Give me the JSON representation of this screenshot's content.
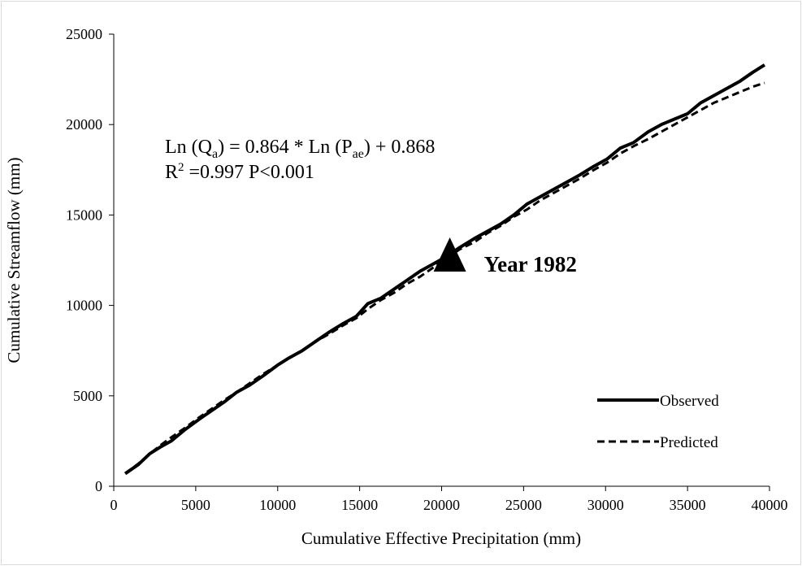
{
  "chart_data": {
    "type": "line",
    "x_label": "Cumulative Effective Precipitation (mm)",
    "y_label": "Cumulative Streamflow (mm)",
    "equation": [
      "Ln (Q",
      "a",
      ") = 0.864 * Ln (P",
      "ae",
      ") + 0.868"
    ],
    "r_squared": [
      "R",
      "2",
      " =0.997  P<0.001"
    ],
    "marker": {
      "x": 20500,
      "y": 12500,
      "label": "Year 1982",
      "color": "#000000"
    },
    "x": [
      700,
      1500,
      2200,
      2900,
      3500,
      4300,
      5200,
      6000,
      6800,
      7500,
      8300,
      9100,
      10000,
      10700,
      11500,
      12300,
      13100,
      14000,
      14800,
      15500,
      16300,
      17100,
      17900,
      18700,
      19500,
      20300,
      21100,
      22000,
      22800,
      23600,
      24400,
      25200,
      26000,
      26800,
      27600,
      28400,
      29300,
      30100,
      30900,
      31700,
      32600,
      33400,
      34200,
      35000,
      35800,
      36600,
      37400,
      38200,
      39000,
      39700
    ],
    "series": [
      {
        "name": "Observed",
        "color": "#000000",
        "dash": "solid",
        "values": [
          700,
          1200,
          1800,
          2200,
          2500,
          3100,
          3700,
          4200,
          4700,
          5200,
          5600,
          6100,
          6700,
          7100,
          7500,
          8000,
          8500,
          9000,
          9400,
          10100,
          10400,
          10900,
          11400,
          11900,
          12300,
          12700,
          13200,
          13700,
          14100,
          14500,
          15000,
          15600,
          16000,
          16400,
          16800,
          17200,
          17700,
          18100,
          18700,
          19000,
          19600,
          20000,
          20300,
          20600,
          21200,
          21600,
          22000,
          22400,
          22900,
          23300
        ]
      },
      {
        "name": "Predicted",
        "color": "#000000",
        "dash": "dashed",
        "values": [
          700,
          1250,
          1800,
          2300,
          2700,
          3200,
          3800,
          4300,
          4800,
          5200,
          5700,
          6200,
          6700,
          7100,
          7500,
          8000,
          8400,
          8900,
          9300,
          9800,
          10300,
          10700,
          11200,
          11600,
          12100,
          12600,
          13100,
          13500,
          14000,
          14400,
          14900,
          15300,
          15800,
          16200,
          16600,
          17000,
          17500,
          17900,
          18400,
          18800,
          19200,
          19600,
          20000,
          20400,
          20800,
          21200,
          21500,
          21800,
          22100,
          22300
        ]
      }
    ],
    "xlim": [
      0,
      40000
    ],
    "ylim": [
      0,
      25000
    ],
    "xticks": [
      0,
      5000,
      10000,
      15000,
      20000,
      25000,
      30000,
      35000,
      40000
    ],
    "yticks": [
      0,
      5000,
      10000,
      15000,
      20000,
      25000
    ],
    "grid": false,
    "legend": "lower right"
  }
}
